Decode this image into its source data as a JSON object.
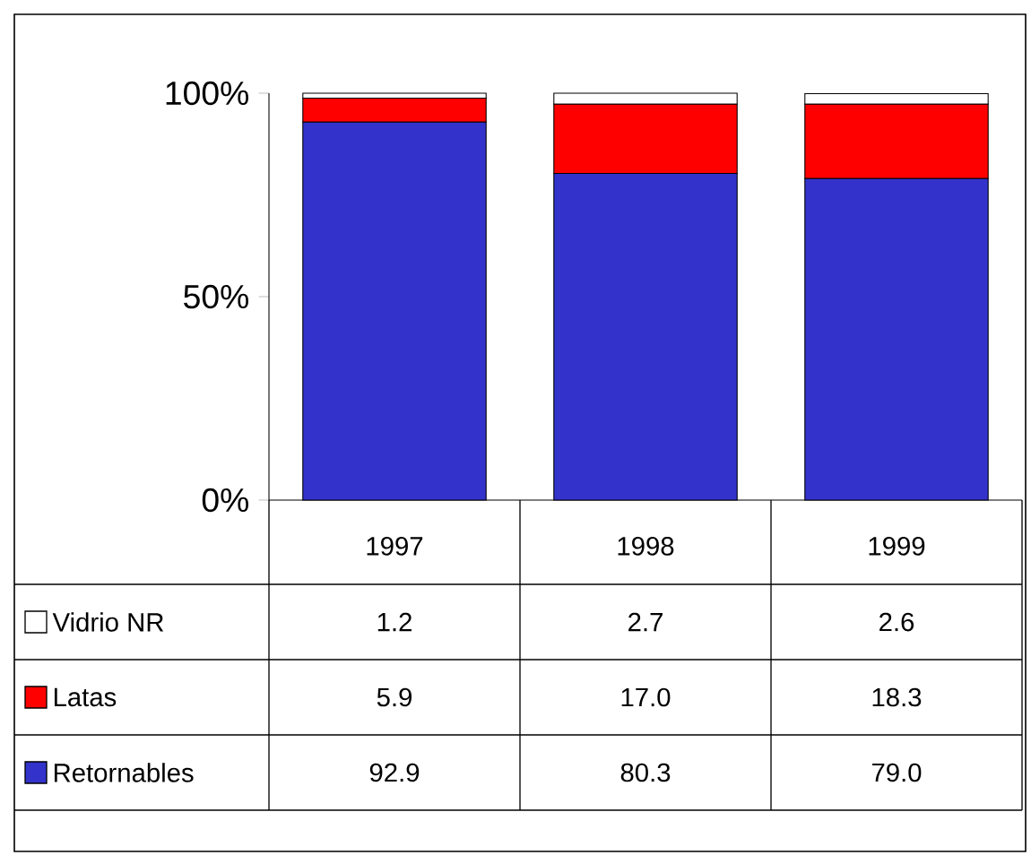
{
  "chart_data": {
    "type": "bar",
    "stacked": true,
    "categories": [
      "1997",
      "1998",
      "1999"
    ],
    "ylim": [
      0,
      100
    ],
    "yticks": [
      {
        "value": 0,
        "label": "0%"
      },
      {
        "value": 50,
        "label": "50%"
      },
      {
        "value": 100,
        "label": "100%"
      }
    ],
    "legend": "bottom left",
    "series": [
      {
        "name": "Retornables",
        "color": "#3333cc",
        "values": [
          92.9,
          80.3,
          79.0
        ],
        "value_labels": [
          "92.9",
          "80.3",
          "79.0"
        ]
      },
      {
        "name": "Latas",
        "color": "#ff0000",
        "values": [
          5.9,
          17.0,
          18.3
        ],
        "value_labels": [
          "5.9",
          "17.0",
          "18.3"
        ]
      },
      {
        "name": "Vidrio NR",
        "color": "#ffffff",
        "values": [
          1.2,
          2.7,
          2.6
        ],
        "value_labels": [
          "1.2",
          "2.7",
          "2.6"
        ]
      }
    ]
  }
}
